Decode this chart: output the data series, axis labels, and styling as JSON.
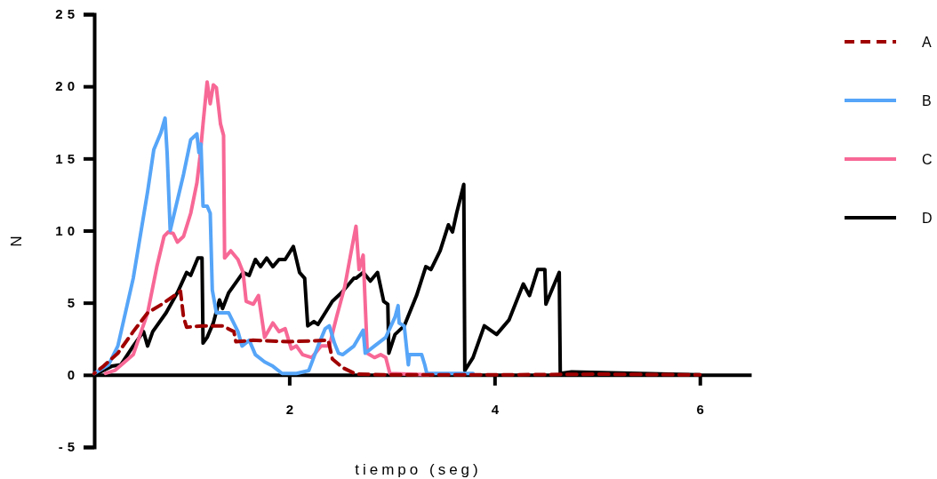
{
  "chart_data": {
    "type": "line",
    "xlabel": "tiempo (seg)",
    "ylabel": "N",
    "xlim": [
      0.1,
      6.5
    ],
    "ylim": [
      -5,
      25
    ],
    "xticks": [
      2,
      4,
      6
    ],
    "yticks": [
      -5,
      0,
      5,
      10,
      15,
      20,
      25
    ],
    "grid": false,
    "legend": "right",
    "marker": "none",
    "series": [
      {
        "name": "A",
        "color": "#a00000",
        "line_style": "dashed",
        "x": [
          0.1,
          0.19,
          0.33,
          0.48,
          0.62,
          0.76,
          0.94,
          0.97,
          1.0,
          1.15,
          1.35,
          1.46,
          1.48,
          1.64,
          2.0,
          2.38,
          2.42,
          2.52,
          2.65,
          3.0,
          4.0,
          5.0,
          6.0
        ],
        "values": [
          0.1,
          0.6,
          1.5,
          3.0,
          4.3,
          4.9,
          5.8,
          4.0,
          3.3,
          3.4,
          3.4,
          3.0,
          2.3,
          2.4,
          2.3,
          2.4,
          1.1,
          0.5,
          0.05,
          0,
          0,
          0.05,
          0
        ]
      },
      {
        "name": "B",
        "color": "#56a5f8",
        "line_style": "solid",
        "x": [
          0.1,
          0.24,
          0.33,
          0.48,
          0.62,
          0.68,
          0.75,
          0.79,
          0.81,
          0.84,
          0.88,
          0.97,
          1.04,
          1.1,
          1.12,
          1.14,
          1.16,
          1.2,
          1.23,
          1.25,
          1.29,
          1.41,
          1.5,
          1.54,
          1.61,
          1.67,
          1.76,
          1.84,
          1.93,
          2.07,
          2.19,
          2.28,
          2.35,
          2.39,
          2.44,
          2.48,
          2.52,
          2.63,
          2.72,
          2.74,
          2.83,
          2.94,
          3.03,
          3.06,
          3.07,
          3.12,
          3.16,
          3.17,
          3.29,
          3.32,
          3.34,
          3.79
        ],
        "values": [
          0.1,
          0.7,
          2.0,
          6.7,
          12.7,
          15.6,
          16.8,
          17.8,
          15.4,
          10.0,
          11.2,
          13.9,
          16.3,
          16.7,
          15.4,
          16.0,
          11.7,
          11.7,
          11.2,
          5.9,
          4.3,
          4.3,
          3.0,
          2.0,
          2.4,
          1.4,
          0.9,
          0.6,
          0.1,
          0.1,
          0.3,
          2.0,
          3.2,
          3.4,
          2.2,
          1.5,
          1.4,
          2.0,
          3.1,
          1.5,
          2.0,
          2.6,
          4.0,
          4.8,
          3.6,
          3.4,
          0.7,
          1.4,
          1.4,
          0.7,
          0.1,
          0.1
        ]
      },
      {
        "name": "C",
        "color": "#f76896",
        "line_style": "solid",
        "x": [
          0.21,
          0.3,
          0.48,
          0.62,
          0.71,
          0.78,
          0.82,
          0.87,
          0.91,
          0.97,
          1.04,
          1.1,
          1.13,
          1.16,
          1.2,
          1.23,
          1.26,
          1.29,
          1.33,
          1.36,
          1.37,
          1.43,
          1.5,
          1.55,
          1.58,
          1.65,
          1.7,
          1.76,
          1.84,
          1.9,
          1.96,
          2.02,
          2.07,
          2.13,
          2.22,
          2.31,
          2.39,
          2.46,
          2.54,
          2.61,
          2.65,
          2.68,
          2.72,
          2.76,
          2.83,
          2.89,
          2.94,
          2.98,
          3.35
        ],
        "values": [
          0.1,
          0.3,
          1.4,
          4.3,
          7.5,
          9.6,
          9.9,
          9.8,
          9.2,
          9.6,
          11.2,
          13.3,
          15.1,
          17.4,
          20.3,
          18.8,
          20.1,
          19.9,
          17.4,
          16.6,
          8.1,
          8.6,
          8.0,
          7.1,
          5.1,
          4.9,
          5.5,
          2.6,
          3.6,
          3.0,
          3.2,
          1.8,
          2.0,
          1.4,
          1.2,
          2.0,
          2.0,
          4.0,
          6.1,
          8.8,
          10.3,
          7.3,
          8.3,
          1.5,
          1.2,
          1.4,
          1.2,
          0.1,
          0
        ]
      },
      {
        "name": "D",
        "color": "#000000",
        "line_style": "solid",
        "x": [
          0.13,
          0.27,
          0.36,
          0.48,
          0.58,
          0.62,
          0.67,
          0.8,
          0.91,
          1.0,
          1.04,
          1.11,
          1.15,
          1.16,
          1.2,
          1.26,
          1.32,
          1.35,
          1.41,
          1.55,
          1.61,
          1.67,
          1.72,
          1.78,
          1.84,
          1.9,
          1.96,
          2.04,
          2.1,
          2.15,
          2.18,
          2.24,
          2.28,
          2.42,
          2.51,
          2.63,
          2.65,
          2.72,
          2.79,
          2.86,
          2.92,
          2.96,
          2.97,
          3.03,
          3.12,
          3.24,
          3.33,
          3.38,
          3.47,
          3.55,
          3.59,
          3.63,
          3.7,
          3.71,
          3.79,
          3.9,
          4.02,
          4.14,
          4.28,
          4.34,
          4.42,
          4.49,
          4.5,
          4.63,
          4.64,
          4.75,
          6.0
        ],
        "values": [
          0.1,
          0.6,
          0.7,
          2.0,
          3.0,
          2.0,
          3.0,
          4.3,
          5.7,
          7.1,
          6.9,
          8.1,
          8.1,
          2.2,
          2.6,
          3.6,
          5.2,
          4.6,
          5.7,
          7.1,
          6.9,
          8.0,
          7.5,
          8.1,
          7.5,
          8.0,
          8.0,
          8.9,
          7.1,
          6.7,
          3.4,
          3.7,
          3.5,
          5.1,
          5.7,
          6.7,
          6.7,
          7.1,
          6.5,
          7.1,
          5.1,
          4.9,
          1.5,
          2.8,
          3.4,
          5.5,
          7.5,
          7.3,
          8.6,
          10.4,
          9.9,
          11.2,
          13.2,
          0.3,
          1.2,
          3.4,
          2.8,
          3.8,
          6.3,
          5.5,
          7.3,
          7.3,
          4.9,
          7.1,
          0.1,
          0.2,
          0
        ]
      }
    ]
  }
}
